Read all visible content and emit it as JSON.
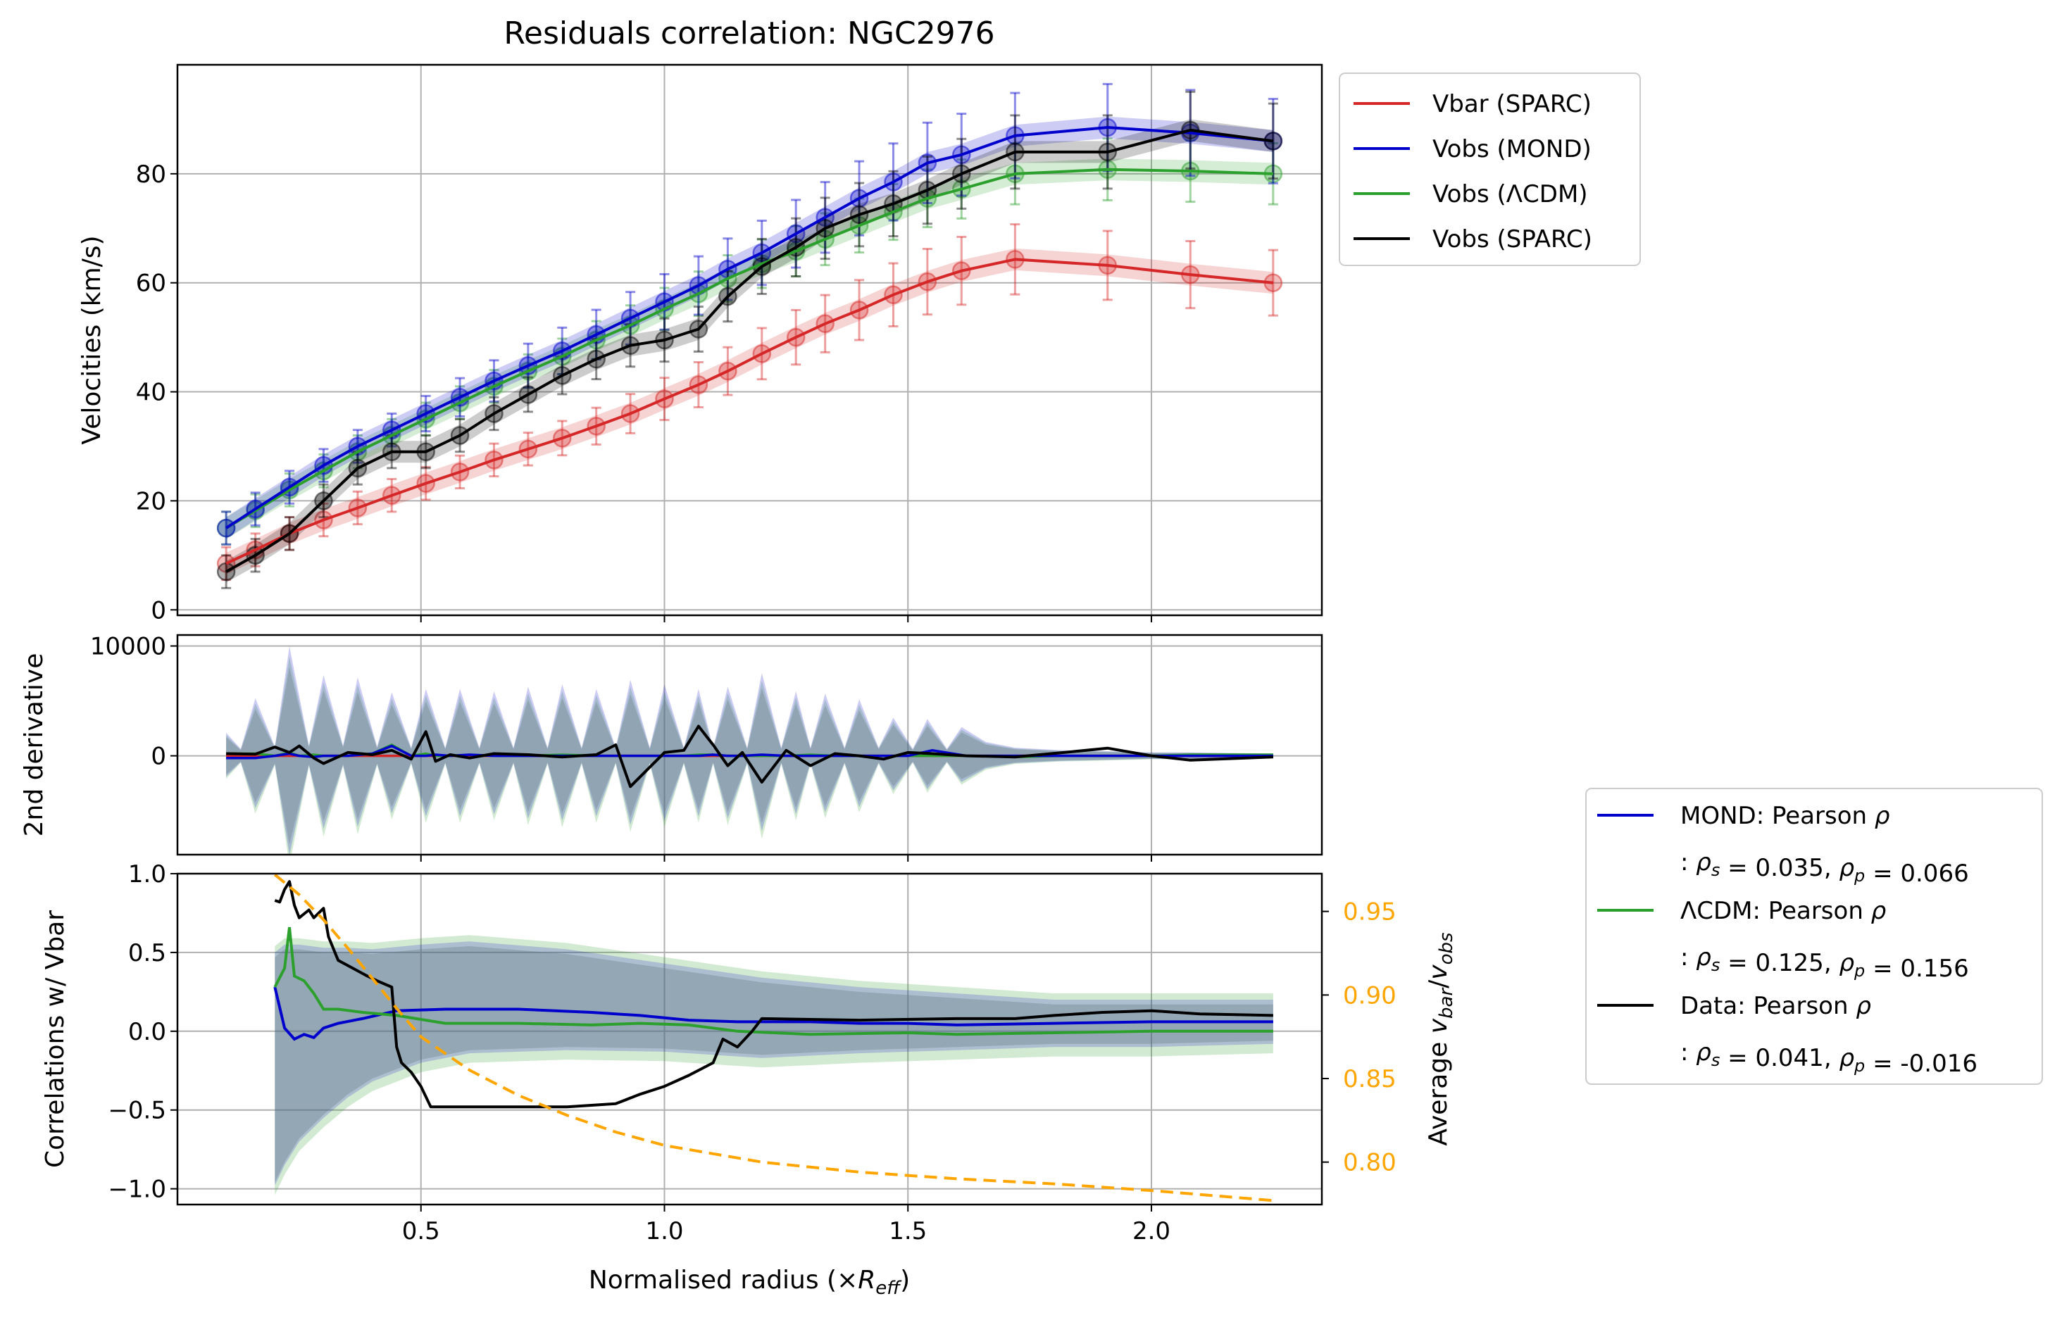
{
  "chart_data": {
    "type": "line",
    "title": "Residuals correlation: NGC2976",
    "xlabel": "Normalised radius (×",
    "xlabel_var": "R",
    "xlabel_sub": "eff",
    "xlabel_close": ")",
    "xlim": [
      0.0,
      2.35
    ],
    "xticks": [
      0.5,
      1.0,
      1.5,
      2.0
    ],
    "xtick_labels": [
      "0.5",
      "1.0",
      "1.5",
      "2.0"
    ],
    "colors": {
      "vbar": "#d62728",
      "mond": "#0000cd",
      "lcdm": "#2ca02c",
      "data": "#000000",
      "ratio": "#ffa500"
    },
    "panels": {
      "velocities": {
        "ylabel": "Velocities (km/s)",
        "ylim": [
          -1,
          100
        ],
        "yticks": [
          0,
          20,
          40,
          60,
          80
        ],
        "ytick_labels": [
          "0",
          "20",
          "40",
          "60",
          "80"
        ],
        "grid": true,
        "legend_position": "outside-top-right",
        "legend": [
          {
            "label": "Vbar (SPARC)",
            "color": "#d62728"
          },
          {
            "label": "Vobs (MOND)",
            "color": "#0000cd"
          },
          {
            "label": "Vobs (ΛCDM)",
            "color": "#2ca02c"
          },
          {
            "label": "Vobs (SPARC)",
            "color": "#000000"
          }
        ],
        "x": [
          0.1,
          0.16,
          0.23,
          0.3,
          0.37,
          0.44,
          0.51,
          0.58,
          0.65,
          0.72,
          0.79,
          0.86,
          0.93,
          1.0,
          1.07,
          1.13,
          1.2,
          1.27,
          1.33,
          1.4,
          1.47,
          1.54,
          1.61,
          1.72,
          1.91,
          2.08,
          2.25
        ],
        "series": [
          {
            "name": "Vbar (SPARC)",
            "key": "vbar",
            "values": [
              8.5,
              11,
              14,
              16.5,
              18.7,
              21,
              23.2,
              25.3,
              27.5,
              29.5,
              31.5,
              33.7,
              36,
              38.7,
              41.3,
              43.8,
              47,
              50,
              52.5,
              55,
              57.8,
              60.2,
              62.2,
              64.3,
              63.2,
              61.5,
              60
            ]
          },
          {
            "name": "Vobs (MOND)",
            "key": "mond",
            "values": [
              15,
              18.5,
              22.5,
              26.5,
              30,
              33,
              36,
              39,
              42,
              44.8,
              47.5,
              50.5,
              53.5,
              56.5,
              59.5,
              62.5,
              65.5,
              69,
              72,
              75.5,
              78.5,
              82,
              83.5,
              87,
              88.5,
              87.5,
              86
            ]
          },
          {
            "name": "Vobs (ΛCDM)",
            "key": "lcdm",
            "values": [
              15,
              18.2,
              22,
              25.5,
              29,
              32,
              35,
              38,
              41,
              43.8,
              46.5,
              49.5,
              52.2,
              55.2,
              58,
              60.8,
              63.5,
              65.8,
              68,
              70.5,
              73,
              75.5,
              77.2,
              80,
              80.8,
              80.5,
              80
            ]
          },
          {
            "name": "Vobs (SPARC)",
            "key": "data",
            "values": [
              7,
              10,
              14,
              20,
              26,
              29,
              29,
              32,
              36,
              39.5,
              43,
              46,
              48.5,
              49.5,
              51.5,
              57.5,
              63,
              66.5,
              70,
              72.5,
              74.5,
              77,
              80,
              84,
              84,
              88,
              86
            ]
          }
        ]
      },
      "second_derivative": {
        "ylabel": "2nd derivative",
        "ylim": [
          -9000,
          11000
        ],
        "yticks": [
          0,
          10000
        ],
        "ytick_labels": [
          "0",
          "10000"
        ],
        "grid": true,
        "data_x": [
          0.1,
          0.16,
          0.2,
          0.23,
          0.25,
          0.28,
          0.3,
          0.35,
          0.4,
          0.44,
          0.48,
          0.51,
          0.53,
          0.56,
          0.6,
          0.65,
          0.72,
          0.79,
          0.86,
          0.9,
          0.93,
          1.0,
          1.04,
          1.07,
          1.1,
          1.13,
          1.16,
          1.2,
          1.25,
          1.3,
          1.35,
          1.4,
          1.45,
          1.5,
          1.55,
          1.62,
          1.72,
          1.82,
          1.91,
          2.0,
          2.08,
          2.25
        ],
        "data_values": [
          200,
          150,
          800,
          300,
          900,
          -200,
          -700,
          300,
          100,
          500,
          -300,
          2200,
          -500,
          100,
          -200,
          200,
          100,
          -100,
          100,
          1000,
          -2800,
          300,
          500,
          2700,
          1000,
          -900,
          300,
          -2400,
          500,
          -900,
          200,
          0,
          -300,
          300,
          200,
          0,
          -100,
          300,
          700,
          0,
          -400,
          -100
        ],
        "mond_values": [
          -200,
          -200,
          0,
          200,
          0,
          -100,
          0,
          0,
          200,
          900,
          0,
          0,
          100,
          0,
          100,
          0,
          0,
          0,
          0,
          0,
          0,
          0,
          0,
          0,
          100,
          0,
          0,
          100,
          0,
          0,
          0,
          0,
          0,
          0,
          500,
          0,
          0,
          0,
          0,
          0,
          0,
          0
        ],
        "lcdm_values": [
          200,
          200,
          0,
          300,
          0,
          100,
          0,
          0,
          200,
          1000,
          0,
          200,
          0,
          0,
          100,
          0,
          0,
          100,
          0,
          0,
          0,
          0,
          0,
          100,
          100,
          0,
          0,
          0,
          0,
          100,
          0,
          0,
          0,
          0,
          0,
          0,
          -100,
          0,
          0,
          0,
          100,
          100
        ],
        "band_x": [
          0.1,
          0.13,
          0.16,
          0.2,
          0.23,
          0.27,
          0.3,
          0.34,
          0.37,
          0.41,
          0.44,
          0.48,
          0.51,
          0.55,
          0.58,
          0.62,
          0.65,
          0.69,
          0.72,
          0.76,
          0.79,
          0.83,
          0.86,
          0.9,
          0.93,
          0.97,
          1.0,
          1.04,
          1.07,
          1.1,
          1.13,
          1.17,
          1.2,
          1.24,
          1.27,
          1.3,
          1.33,
          1.37,
          1.4,
          1.44,
          1.47,
          1.51,
          1.54,
          1.58,
          1.61,
          1.66,
          1.72,
          1.81,
          1.91,
          2.0,
          2.08,
          2.16,
          2.25
        ],
        "band_amp": [
          2000,
          600,
          5000,
          800,
          9500,
          900,
          7000,
          900,
          6800,
          800,
          5500,
          700,
          5800,
          700,
          5800,
          700,
          5600,
          700,
          6000,
          700,
          6200,
          700,
          5800,
          700,
          6600,
          700,
          6200,
          700,
          5800,
          700,
          6000,
          700,
          7200,
          700,
          5600,
          700,
          5400,
          700,
          4900,
          700,
          3300,
          600,
          3200,
          600,
          2500,
          1200,
          700,
          500,
          400,
          300,
          300,
          250,
          200
        ]
      },
      "correlations": {
        "ylabel": "Correlations w/ Vbar",
        "ylim": [
          -1.1,
          1.0
        ],
        "yticks": [
          -1.0,
          -0.5,
          0.0,
          0.5,
          1.0
        ],
        "ytick_labels": [
          "−1.0",
          "−0.5",
          "0.0",
          "0.5",
          "1.0"
        ],
        "y2label_prefix": "Average ",
        "y2label_v1": "v",
        "y2label_sub1": "bar",
        "y2label_slash": "/",
        "y2label_v2": "v",
        "y2label_sub2": "obs",
        "y2lim": [
          0.7746,
          0.9726
        ],
        "y2ticks": [
          0.8,
          0.85,
          0.9,
          0.95
        ],
        "y2tick_labels": [
          "0.80",
          "0.85",
          "0.90",
          "0.95"
        ],
        "grid": true,
        "legend_position": "outside-right",
        "legend": [
          {
            "label": "MOND: Pearson ",
            "greek": "ρ",
            "stats": ": ρs = 0.035, ρp = 0.066",
            "rho_s": "0.035",
            "rho_p": "0.066",
            "color": "#0000cd"
          },
          {
            "label": "ΛCDM: Pearson ",
            "greek": "ρ",
            "stats": ": ρs = 0.125, ρp = 0.156",
            "rho_s": "0.125",
            "rho_p": "0.156",
            "color": "#2ca02c"
          },
          {
            "label": "Data: Pearson ",
            "greek": "ρ",
            "stats": ": ρs = 0.041, ρp = -0.016",
            "rho_s": "0.041",
            "rho_p": "-0.016",
            "color": "#000000"
          }
        ],
        "mond": {
          "x": [
            0.2,
            0.22,
            0.24,
            0.26,
            0.28,
            0.3,
            0.33,
            0.38,
            0.45,
            0.55,
            0.7,
            0.85,
            0.95,
            1.05,
            1.15,
            1.2,
            1.3,
            1.4,
            1.5,
            1.6,
            1.8,
            2.0,
            2.25
          ],
          "values": [
            0.28,
            0.02,
            -0.05,
            -0.02,
            -0.04,
            0.02,
            0.05,
            0.08,
            0.13,
            0.14,
            0.14,
            0.12,
            0.1,
            0.07,
            0.06,
            0.06,
            0.06,
            0.05,
            0.05,
            0.04,
            0.05,
            0.06,
            0.06
          ]
        },
        "lcdm": {
          "x": [
            0.2,
            0.22,
            0.23,
            0.24,
            0.26,
            0.28,
            0.3,
            0.33,
            0.38,
            0.45,
            0.55,
            0.7,
            0.85,
            0.95,
            1.05,
            1.15,
            1.3,
            1.5,
            1.6,
            1.8,
            2.0,
            2.25
          ],
          "values": [
            0.28,
            0.4,
            0.66,
            0.35,
            0.32,
            0.24,
            0.14,
            0.14,
            0.12,
            0.1,
            0.05,
            0.05,
            0.04,
            0.05,
            0.04,
            0.0,
            -0.02,
            -0.01,
            -0.02,
            -0.01,
            0.0,
            0.0
          ]
        },
        "data": {
          "x": [
            0.2,
            0.21,
            0.22,
            0.23,
            0.24,
            0.25,
            0.27,
            0.28,
            0.3,
            0.31,
            0.33,
            0.36,
            0.39,
            0.41,
            0.44,
            0.45,
            0.46,
            0.48,
            0.5,
            0.52,
            0.6,
            0.7,
            0.8,
            0.9,
            0.95,
            1.0,
            1.05,
            1.1,
            1.12,
            1.15,
            1.18,
            1.2,
            1.4,
            1.6,
            1.72,
            1.8,
            1.9,
            2.0,
            2.1,
            2.25
          ],
          "values": [
            0.83,
            0.82,
            0.9,
            0.95,
            0.8,
            0.72,
            0.77,
            0.72,
            0.78,
            0.6,
            0.45,
            0.4,
            0.35,
            0.32,
            0.28,
            -0.1,
            -0.2,
            -0.26,
            -0.35,
            -0.48,
            -0.48,
            -0.48,
            -0.48,
            -0.46,
            -0.4,
            -0.35,
            -0.28,
            -0.2,
            -0.05,
            -0.1,
            0.0,
            0.08,
            0.07,
            0.08,
            0.08,
            0.1,
            0.12,
            0.13,
            0.11,
            0.1
          ]
        },
        "band": {
          "x": [
            0.2,
            0.22,
            0.25,
            0.3,
            0.35,
            0.4,
            0.5,
            0.6,
            0.8,
            1.0,
            1.2,
            1.4,
            1.6,
            1.8,
            2.0,
            2.25
          ],
          "lower": [
            -0.98,
            -0.85,
            -0.7,
            -0.55,
            -0.42,
            -0.32,
            -0.2,
            -0.14,
            -0.12,
            -0.13,
            -0.17,
            -0.14,
            -0.12,
            -0.1,
            -0.1,
            -0.08
          ],
          "upper": [
            0.5,
            0.55,
            0.55,
            0.53,
            0.53,
            0.52,
            0.55,
            0.57,
            0.52,
            0.43,
            0.34,
            0.28,
            0.24,
            0.2,
            0.2,
            0.2
          ]
        },
        "ratio": {
          "x": [
            0.2,
            0.25,
            0.3,
            0.35,
            0.4,
            0.45,
            0.5,
            0.6,
            0.7,
            0.8,
            0.9,
            1.0,
            1.2,
            1.4,
            1.6,
            1.8,
            2.0,
            2.25
          ],
          "values": [
            0.972,
            0.96,
            0.945,
            0.928,
            0.91,
            0.892,
            0.875,
            0.855,
            0.84,
            0.828,
            0.818,
            0.81,
            0.8,
            0.794,
            0.79,
            0.787,
            0.783,
            0.777
          ]
        }
      }
    }
  }
}
